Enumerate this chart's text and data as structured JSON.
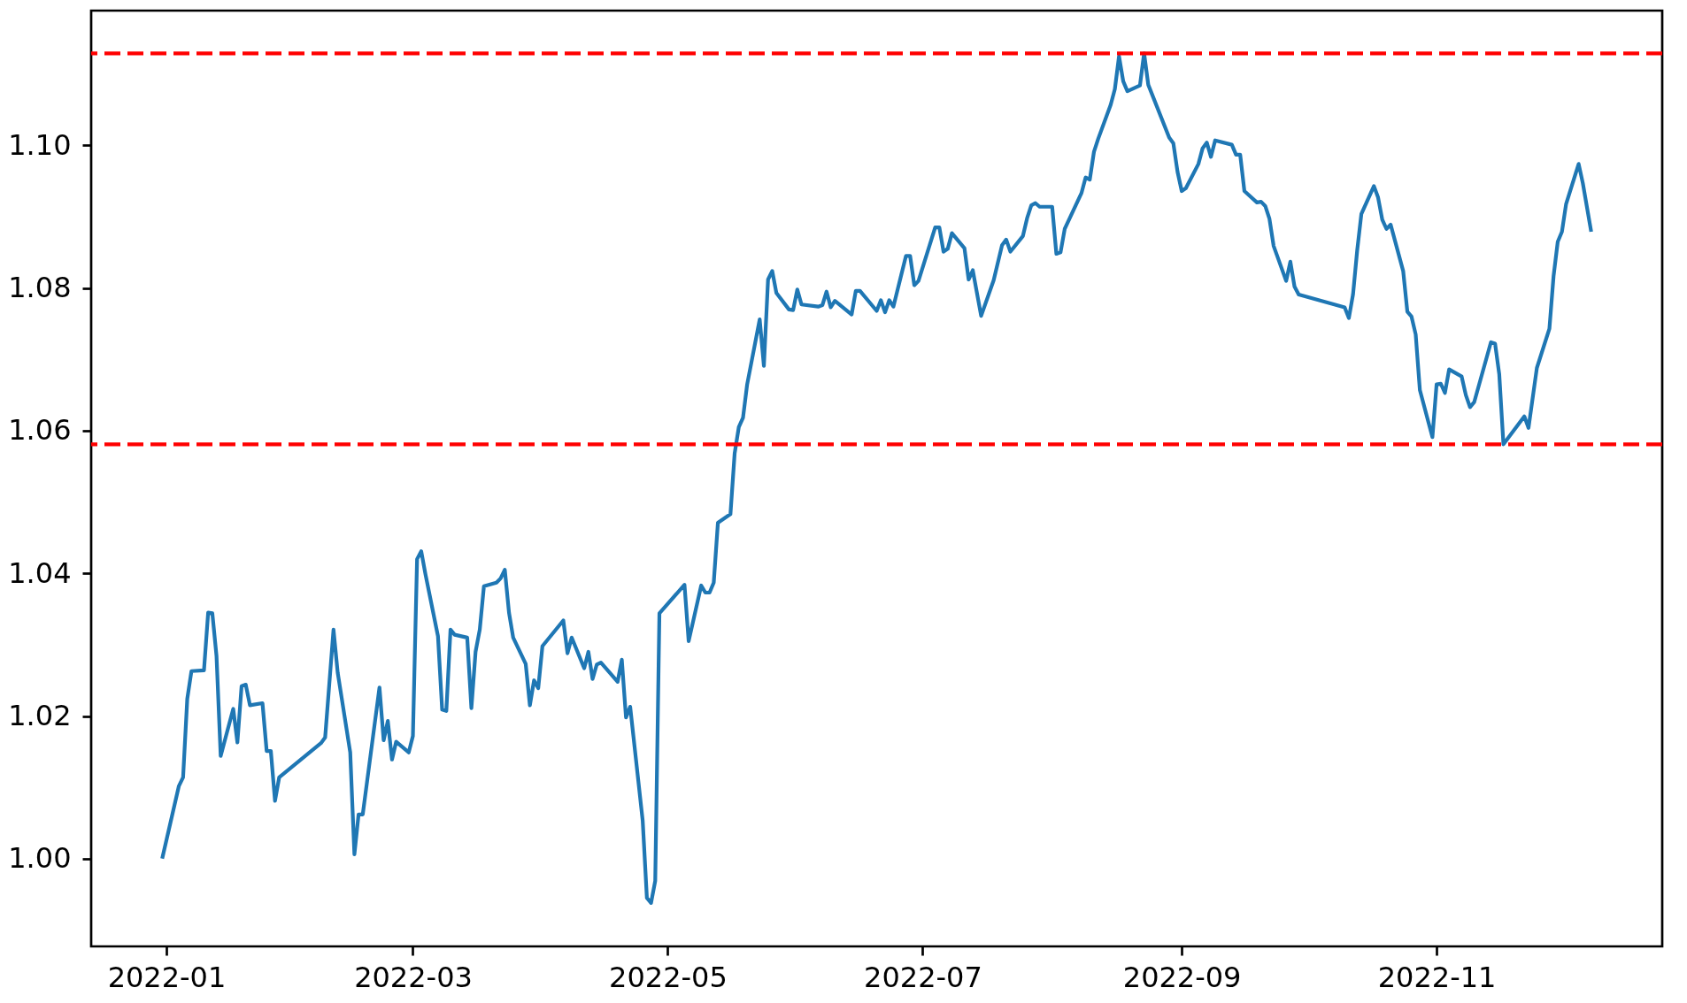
{
  "chart_data": {
    "type": "line",
    "grid": false,
    "line_style": "solid",
    "xlim": [
      "2021-12-14",
      "2022-12-25"
    ],
    "xticks": [
      "2022-01",
      "2022-03",
      "2022-05",
      "2022-07",
      "2022-09",
      "2022-11"
    ],
    "ylim": [
      0.9877,
      1.1189
    ],
    "yticks": [
      {
        "value": 1.0,
        "label": "1.00"
      },
      {
        "value": 1.02,
        "label": "1.02"
      },
      {
        "value": 1.04,
        "label": "1.04"
      },
      {
        "value": 1.06,
        "label": "1.06"
      },
      {
        "value": 1.08,
        "label": "1.08"
      },
      {
        "value": 1.1,
        "label": "1.10"
      }
    ],
    "ref_lines": [
      {
        "axis": "y",
        "value": 1.1129,
        "color": "#ff0000",
        "line_style": "dashed"
      },
      {
        "axis": "y",
        "value": 1.0581,
        "color": "#ff0000",
        "line_style": "dashed"
      }
    ],
    "x": [
      "2021-12-31",
      "2022-01-04",
      "2022-01-05",
      "2022-01-06",
      "2022-01-07",
      "2022-01-10",
      "2022-01-11",
      "2022-01-12",
      "2022-01-13",
      "2022-01-14",
      "2022-01-17",
      "2022-01-18",
      "2022-01-19",
      "2022-01-20",
      "2022-01-21",
      "2022-01-24",
      "2022-01-25",
      "2022-01-26",
      "2022-01-27",
      "2022-01-28",
      "2022-02-07",
      "2022-02-08",
      "2022-02-10",
      "2022-02-11",
      "2022-02-14",
      "2022-02-15",
      "2022-02-16",
      "2022-02-17",
      "2022-02-21",
      "2022-02-22",
      "2022-02-23",
      "2022-02-24",
      "2022-02-25",
      "2022-02-28",
      "2022-03-01",
      "2022-03-02",
      "2022-03-03",
      "2022-03-04",
      "2022-03-07",
      "2022-03-08",
      "2022-03-09",
      "2022-03-10",
      "2022-03-11",
      "2022-03-14",
      "2022-03-15",
      "2022-03-16",
      "2022-03-17",
      "2022-03-18",
      "2022-03-21",
      "2022-03-22",
      "2022-03-23",
      "2022-03-24",
      "2022-03-25",
      "2022-03-28",
      "2022-03-29",
      "2022-03-30",
      "2022-03-31",
      "2022-04-01",
      "2022-04-06",
      "2022-04-07",
      "2022-04-08",
      "2022-04-11",
      "2022-04-12",
      "2022-04-13",
      "2022-04-14",
      "2022-04-15",
      "2022-04-19",
      "2022-04-20",
      "2022-04-21",
      "2022-04-22",
      "2022-04-25",
      "2022-04-26",
      "2022-04-27",
      "2022-04-28",
      "2022-04-29",
      "2022-05-05",
      "2022-05-06",
      "2022-05-09",
      "2022-05-10",
      "2022-05-11",
      "2022-05-12",
      "2022-05-13",
      "2022-05-16",
      "2022-05-17",
      "2022-05-18",
      "2022-05-19",
      "2022-05-20",
      "2022-05-23",
      "2022-05-24",
      "2022-05-25",
      "2022-05-26",
      "2022-05-27",
      "2022-05-30",
      "2022-05-31",
      "2022-06-01",
      "2022-06-02",
      "2022-06-06",
      "2022-06-07",
      "2022-06-08",
      "2022-06-09",
      "2022-06-10",
      "2022-06-14",
      "2022-06-15",
      "2022-06-16",
      "2022-06-20",
      "2022-06-21",
      "2022-06-22",
      "2022-06-23",
      "2022-06-24",
      "2022-06-27",
      "2022-06-28",
      "2022-06-29",
      "2022-06-30",
      "2022-07-04",
      "2022-07-05",
      "2022-07-06",
      "2022-07-07",
      "2022-07-08",
      "2022-07-11",
      "2022-07-12",
      "2022-07-13",
      "2022-07-15",
      "2022-07-18",
      "2022-07-20",
      "2022-07-21",
      "2022-07-22",
      "2022-07-25",
      "2022-07-26",
      "2022-07-27",
      "2022-07-28",
      "2022-07-29",
      "2022-08-01",
      "2022-08-02",
      "2022-08-03",
      "2022-08-04",
      "2022-08-08",
      "2022-08-09",
      "2022-08-10",
      "2022-08-11",
      "2022-08-12",
      "2022-08-15",
      "2022-08-16",
      "2022-08-17",
      "2022-08-18",
      "2022-08-19",
      "2022-08-22",
      "2022-08-23",
      "2022-08-24",
      "2022-08-29",
      "2022-08-30",
      "2022-08-31",
      "2022-09-01",
      "2022-09-02",
      "2022-09-05",
      "2022-09-06",
      "2022-09-07",
      "2022-09-08",
      "2022-09-09",
      "2022-09-13",
      "2022-09-14",
      "2022-09-15",
      "2022-09-16",
      "2022-09-19",
      "2022-09-20",
      "2022-09-21",
      "2022-09-22",
      "2022-09-23",
      "2022-09-26",
      "2022-09-27",
      "2022-09-28",
      "2022-09-29",
      "2022-10-10",
      "2022-10-11",
      "2022-10-12",
      "2022-10-13",
      "2022-10-14",
      "2022-10-17",
      "2022-10-18",
      "2022-10-19",
      "2022-10-20",
      "2022-10-21",
      "2022-10-24",
      "2022-10-25",
      "2022-10-26",
      "2022-10-27",
      "2022-10-28",
      "2022-10-31",
      "2022-11-01",
      "2022-11-02",
      "2022-11-03",
      "2022-11-04",
      "2022-11-07",
      "2022-11-08",
      "2022-11-09",
      "2022-11-10",
      "2022-11-14",
      "2022-11-15",
      "2022-11-16",
      "2022-11-17",
      "2022-11-22",
      "2022-11-23",
      "2022-11-25",
      "2022-11-28",
      "2022-11-29",
      "2022-11-30",
      "2022-12-01",
      "2022-12-02",
      "2022-12-05",
      "2022-12-06",
      "2022-12-08"
    ],
    "series": [
      {
        "color": "#1f77b4",
        "values": [
          1.0,
          1.0102,
          1.0114,
          1.0224,
          1.0263,
          1.0264,
          1.0345,
          1.0344,
          1.0284,
          1.0144,
          1.021,
          1.0163,
          1.0242,
          1.0244,
          1.0215,
          1.0218,
          1.0151,
          1.0151,
          1.0081,
          1.0114,
          1.0162,
          1.017,
          1.0321,
          1.0261,
          1.0149,
          1.0006,
          1.0062,
          1.0062,
          1.024,
          1.0166,
          1.0193,
          1.0139,
          1.0164,
          1.0149,
          1.0172,
          1.042,
          1.0431,
          1.0399,
          1.0312,
          1.0209,
          1.0207,
          1.0321,
          1.0314,
          1.031,
          1.0211,
          1.029,
          1.0321,
          1.0382,
          1.0387,
          1.0393,
          1.0405,
          1.0345,
          1.031,
          1.0273,
          1.0215,
          1.025,
          1.0239,
          1.0298,
          1.0334,
          1.0288,
          1.031,
          1.0267,
          1.029,
          1.0252,
          1.0272,
          1.0275,
          1.0248,
          1.0279,
          1.0198,
          1.0213,
          1.0053,
          0.9945,
          0.9938,
          0.9969,
          1.0344,
          1.0384,
          1.0305,
          1.0383,
          1.0373,
          1.0373,
          1.0387,
          1.0471,
          1.0483,
          1.0568,
          1.0605,
          1.0618,
          1.0665,
          1.0756,
          1.0691,
          1.0812,
          1.0824,
          1.0793,
          1.077,
          1.0769,
          1.0798,
          1.0777,
          1.0774,
          1.0776,
          1.0795,
          1.0773,
          1.0782,
          1.0763,
          1.0796,
          1.0796,
          1.0768,
          1.0783,
          1.0766,
          1.0783,
          1.0774,
          1.0845,
          1.0845,
          1.0804,
          1.081,
          1.0885,
          1.0885,
          1.0851,
          1.0855,
          1.0877,
          1.0856,
          1.0812,
          1.0825,
          1.0761,
          1.0811,
          1.086,
          1.0868,
          1.0851,
          1.0873,
          1.0898,
          1.0916,
          1.0919,
          1.0914,
          1.0914,
          1.0848,
          1.085,
          1.0883,
          1.0933,
          1.0955,
          1.0952,
          1.0991,
          1.1009,
          1.1057,
          1.1079,
          1.1125,
          1.109,
          1.1076,
          1.1084,
          1.1129,
          1.1085,
          1.1011,
          1.1003,
          1.0963,
          1.0936,
          1.094,
          1.0974,
          1.0996,
          1.1004,
          1.0984,
          1.1007,
          1.1001,
          1.0987,
          1.0987,
          1.0936,
          1.092,
          1.0921,
          1.0915,
          1.0897,
          1.0859,
          1.081,
          1.0837,
          1.0802,
          1.0791,
          1.0773,
          1.0758,
          1.0791,
          1.0853,
          1.0904,
          1.0943,
          1.0927,
          1.0896,
          1.0883,
          1.0889,
          1.0824,
          1.0767,
          1.076,
          1.0735,
          1.0657,
          1.0591,
          1.0665,
          1.0666,
          1.0653,
          1.0686,
          1.0676,
          1.065,
          1.0633,
          1.064,
          1.0724,
          1.0722,
          1.0679,
          1.0581,
          1.062,
          1.0604,
          1.0688,
          1.0743,
          1.0817,
          1.0865,
          1.0879,
          1.0918,
          1.0974,
          1.0947,
          1.0879
        ]
      }
    ]
  }
}
